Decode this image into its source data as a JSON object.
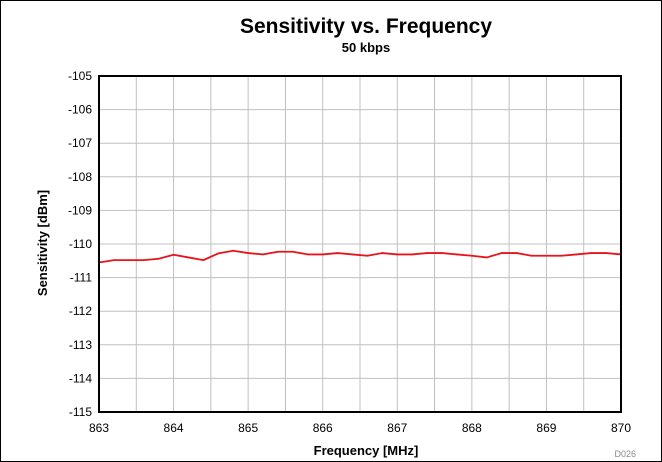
{
  "chart_data": {
    "type": "line",
    "title": "Sensitivity vs. Frequency",
    "subtitle": "50 kbps",
    "xlabel": "Frequency [MHz]",
    "ylabel": "Sensitivity [dBm]",
    "xlim": [
      863,
      870
    ],
    "ylim": [
      -115,
      -105
    ],
    "x_ticks": [
      863,
      864,
      865,
      866,
      867,
      868,
      869,
      870
    ],
    "y_ticks": [
      -105,
      -106,
      -107,
      -108,
      -109,
      -110,
      -111,
      -112,
      -113,
      -114,
      -115
    ],
    "x_tick_labels": [
      "863",
      "864",
      "865",
      "866",
      "867",
      "868",
      "869",
      "870"
    ],
    "y_tick_labels": [
      "-105",
      "-106",
      "-107",
      "-108",
      "-109",
      "-110",
      "-111",
      "-112",
      "-113",
      "-114",
      "-115"
    ],
    "grid": true,
    "series": [
      {
        "color": "#e8141b",
        "x": [
          863.0,
          863.2,
          863.4,
          863.6,
          863.8,
          864.0,
          864.2,
          864.4,
          864.6,
          864.8,
          865.0,
          865.2,
          865.4,
          865.6,
          865.8,
          866.0,
          866.2,
          866.4,
          866.6,
          866.8,
          867.0,
          867.2,
          867.4,
          867.6,
          867.8,
          868.0,
          868.2,
          868.4,
          868.6,
          868.8,
          869.0,
          869.2,
          869.4,
          869.6,
          869.8,
          870.0
        ],
        "y": [
          -110.55,
          -110.48,
          -110.48,
          -110.48,
          -110.44,
          -110.32,
          -110.4,
          -110.48,
          -110.28,
          -110.2,
          -110.27,
          -110.31,
          -110.23,
          -110.23,
          -110.31,
          -110.31,
          -110.27,
          -110.31,
          -110.35,
          -110.27,
          -110.31,
          -110.31,
          -110.27,
          -110.27,
          -110.31,
          -110.35,
          -110.4,
          -110.27,
          -110.27,
          -110.35,
          -110.35,
          -110.35,
          -110.31,
          -110.27,
          -110.27,
          -110.31
        ]
      }
    ],
    "figure_code": "D026"
  }
}
